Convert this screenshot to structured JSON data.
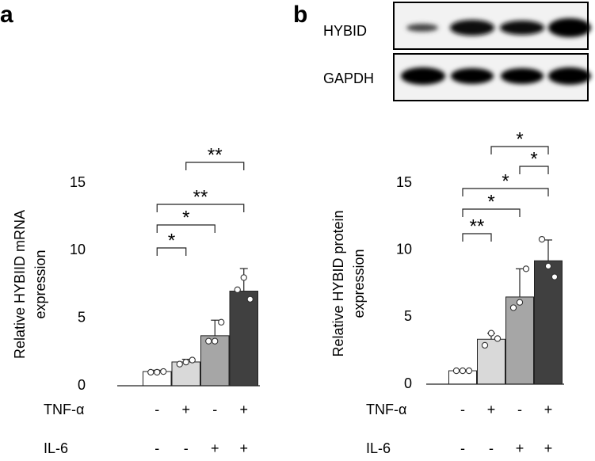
{
  "chart_data": [
    {
      "type": "bar",
      "panel_label": "a",
      "ylabel": [
        "Relative HYBIID mRNA",
        "expression"
      ],
      "ylim": [
        0,
        15
      ],
      "yticks": [
        0,
        5,
        10,
        15
      ],
      "values": [
        1.05,
        1.76,
        3.7,
        7.0
      ],
      "errors": [
        0.1,
        0.2,
        1.15,
        1.67
      ],
      "points": [
        [
          1.0,
          1.0,
          1.05
        ],
        [
          1.6,
          1.75,
          1.9
        ],
        [
          3.3,
          3.3,
          4.7
        ],
        [
          7.1,
          8.0,
          6.4
        ]
      ],
      "colors": [
        "#ffffff",
        "#d9d9d9",
        "#a6a6a6",
        "#404040"
      ],
      "conditions": [
        {
          "name": "TNF-α",
          "values": [
            "-",
            "+",
            "-",
            "+"
          ]
        },
        {
          "name": "IL-6",
          "values": [
            "-",
            "-",
            "+",
            "+"
          ]
        }
      ],
      "significance": [
        {
          "from": 0,
          "to": 1,
          "label": "*"
        },
        {
          "from": 0,
          "to": 2,
          "label": "*"
        },
        {
          "from": 0,
          "to": 3,
          "label": "**"
        },
        {
          "from": 1,
          "to": 3,
          "label": "**"
        }
      ]
    },
    {
      "type": "bar",
      "panel_label": "b",
      "ylabel": [
        "Relative HYBID protein",
        "expression"
      ],
      "ylim": [
        0,
        15
      ],
      "yticks": [
        0,
        5,
        10,
        15
      ],
      "values": [
        1.0,
        3.35,
        6.5,
        9.2
      ],
      "errors": [
        0.05,
        0.45,
        2.1,
        1.55
      ],
      "points": [
        [
          1.0,
          1.0,
          1.0
        ],
        [
          2.9,
          3.8,
          3.4
        ],
        [
          5.7,
          6.1,
          8.6
        ],
        [
          10.8,
          8.8,
          8.0
        ]
      ],
      "colors": [
        "#ffffff",
        "#d9d9d9",
        "#a6a6a6",
        "#404040"
      ],
      "conditions": [
        {
          "name": "TNF-α",
          "values": [
            "-",
            "+",
            "-",
            "+"
          ]
        },
        {
          "name": "IL-6",
          "values": [
            "-",
            "-",
            "+",
            "+"
          ]
        }
      ],
      "significance": [
        {
          "from": 0,
          "to": 1,
          "label": "**"
        },
        {
          "from": 0,
          "to": 2,
          "label": "*"
        },
        {
          "from": 0,
          "to": 3,
          "label": "*"
        },
        {
          "from": 2,
          "to": 3,
          "label": "*"
        },
        {
          "from": 1,
          "to": 3,
          "label": "*"
        }
      ]
    }
  ],
  "blot": {
    "labels": [
      "HYBID",
      "GAPDH"
    ]
  }
}
